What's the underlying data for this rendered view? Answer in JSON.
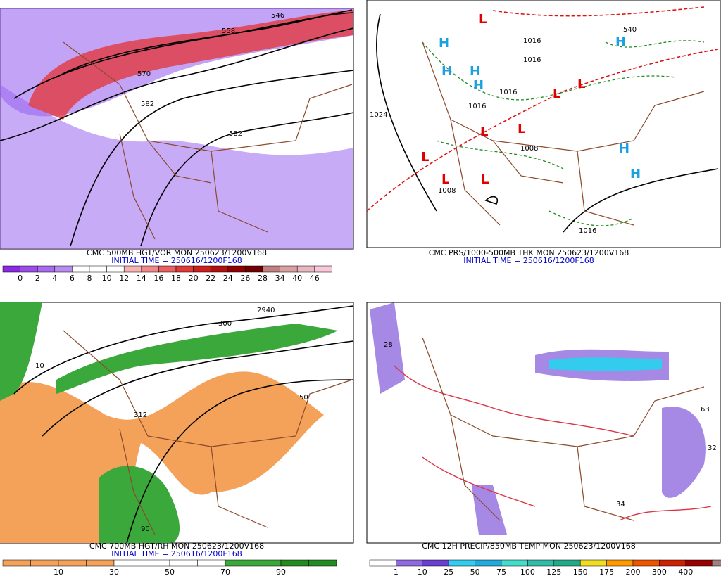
{
  "panels": [
    {
      "caption": "CMC 500MB HGT/VOR MON 250623/1200V168",
      "initial_time": "INITIAL TIME = 250616/1200F168",
      "contour_labels": [
        "546",
        "558",
        "570",
        "582",
        "582"
      ],
      "colorbar": [
        "0",
        "2",
        "4",
        "6",
        "8",
        "10",
        "12",
        "14",
        "16",
        "18",
        "20",
        "22",
        "24",
        "26",
        "28",
        "34",
        "40",
        "46"
      ]
    },
    {
      "caption": "CMC PRS/1000-500MB THK MON 250623/1200V168",
      "initial_time": "INITIAL TIME = 250616/1200F168",
      "contour_labels": [
        "540",
        "1016",
        "1016",
        "1016",
        "1016",
        "1024",
        "1008",
        "1008",
        "1016"
      ],
      "centers": [
        "L",
        "H",
        "H",
        "H",
        "H",
        "L",
        "L",
        "L",
        "L",
        "L",
        "L",
        "L",
        "H",
        "H",
        "H"
      ]
    },
    {
      "caption": "CMC 700MB HGT/RH MON 250623/1200V168",
      "initial_time": "INITIAL TIME = 250616/1200F168",
      "contour_labels": [
        "2940",
        "300",
        "312",
        "50",
        "10",
        "90"
      ],
      "colorbar": [
        "10",
        "30",
        "50",
        "70",
        "90"
      ]
    },
    {
      "caption": "CMC 12H PRECIP/850MB TEMP MON 250623/1200V168",
      "initial_time": "INITIAL TIME = 250616/1200F168",
      "contour_labels": [
        "28",
        "63",
        "34",
        "32"
      ],
      "colorbar": [
        "1",
        "10",
        "25",
        "50",
        "75",
        "100",
        "125",
        "150",
        "175",
        "200",
        "300",
        "400"
      ]
    }
  ]
}
